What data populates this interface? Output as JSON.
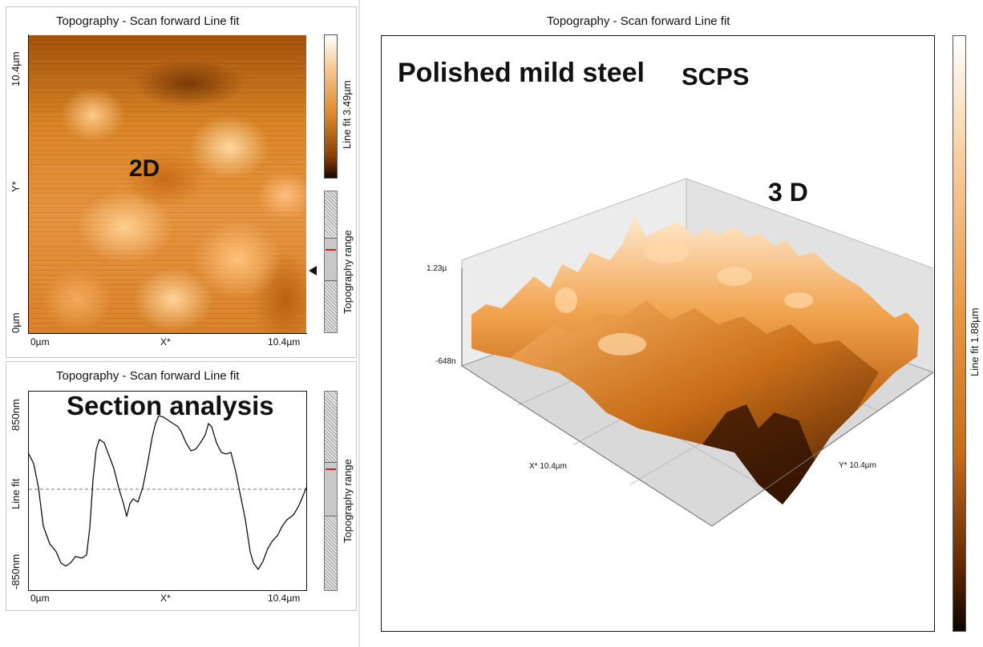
{
  "panel_2d": {
    "title": "Topography - Scan forward   Line fit",
    "label": "2D",
    "y_axis_top": "10.4µm",
    "y_axis_mid": "Y*",
    "y_axis_bottom": "0µm",
    "x_axis_left": "0µm",
    "x_axis_mid": "X*",
    "x_axis_right": "10.4µm",
    "colorbar_label": "Line fit 3.49µm",
    "range_label": "Topography range"
  },
  "panel_section": {
    "title": "Topography - Scan forward   Line fit",
    "label": "Section analysis",
    "y_top": "850nm",
    "y_mid": "Line fit",
    "y_bottom": "-850nm",
    "x_left": "0µm",
    "x_mid": "X*",
    "x_right": "10.4µm",
    "range_label": "Topography range"
  },
  "panel_3d": {
    "title": "Topography - Scan forward   Line fit",
    "heading": "Polished mild steel",
    "heading2": "SCPS",
    "label": "3 D",
    "z_top": "1.23µ",
    "z_bottom": "-648n",
    "x_axis": "X* 10.4µm",
    "y_axis": "Y* 10.4µm",
    "colorbar_label": "Line fit 1.88µm"
  },
  "colors": {
    "orange_light": "#f6b36a",
    "orange_mid": "#d97a1e",
    "orange_dark": "#3a1600"
  }
}
